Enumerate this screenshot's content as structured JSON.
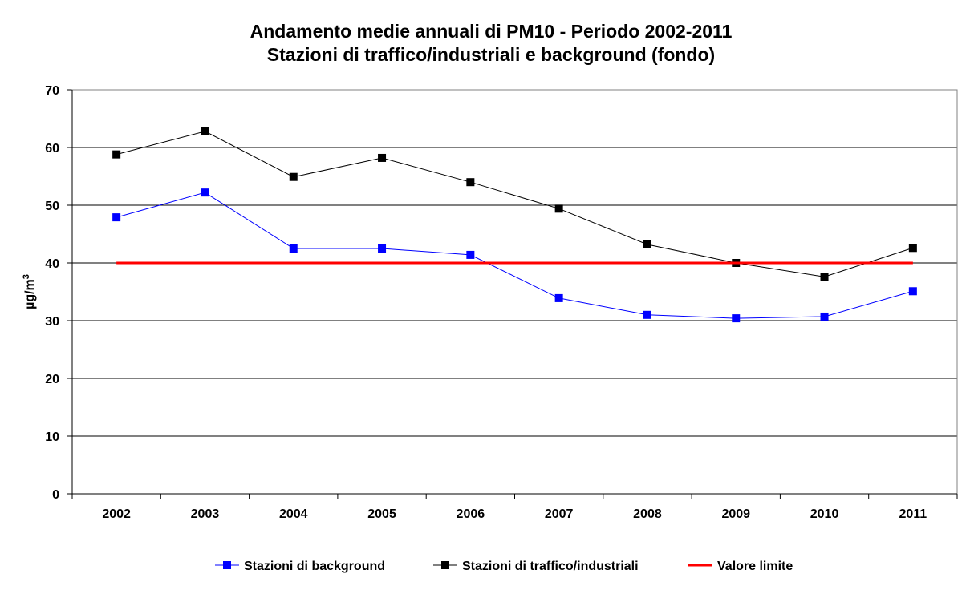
{
  "chart_data": {
    "type": "line",
    "title": "Andamento medie annuali di PM10 - Periodo 2002-2011",
    "subtitle": "Stazioni di traffico/industriali e background (fondo)",
    "xlabel": "",
    "ylabel": "µg/m",
    "ylabel_sup": "3",
    "ylim": [
      0,
      70
    ],
    "yticks": [
      "0",
      "10",
      "20",
      "30",
      "40",
      "50",
      "60",
      "70"
    ],
    "grid": true,
    "legend_position": "bottom",
    "categories": [
      "2002",
      "2003",
      "2004",
      "2005",
      "2006",
      "2007",
      "2008",
      "2009",
      "2010",
      "2011"
    ],
    "series": [
      {
        "name": "Stazioni di background",
        "color": "#0000ff",
        "marker": "square",
        "values": [
          47.9,
          52.2,
          42.5,
          42.5,
          41.4,
          33.9,
          31.0,
          30.4,
          30.7,
          35.1
        ]
      },
      {
        "name": "Stazioni di traffico/industriali",
        "color": "#000000",
        "marker": "square",
        "values": [
          58.8,
          62.8,
          54.9,
          58.2,
          54.0,
          49.4,
          43.2,
          40.0,
          37.6,
          42.6
        ]
      },
      {
        "name": "Valore limite",
        "color": "#ff0000",
        "marker": "none",
        "values": [
          40,
          40,
          40,
          40,
          40,
          40,
          40,
          40,
          40,
          40
        ]
      }
    ]
  }
}
